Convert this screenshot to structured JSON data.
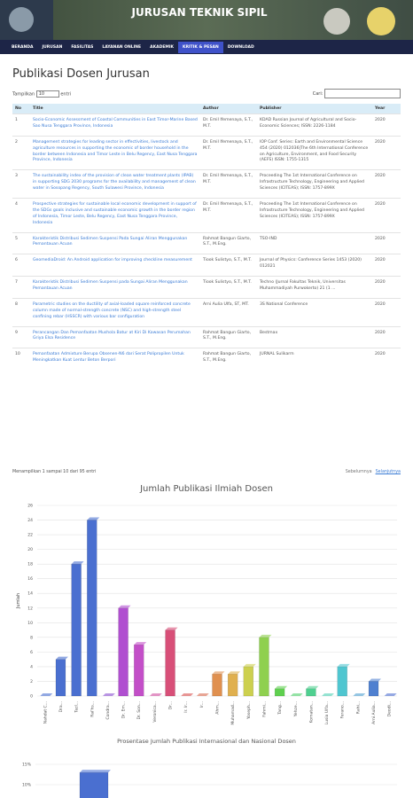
{
  "header": {
    "title": "JURUSAN TEKNIK SIPIL"
  },
  "nav": [
    "BERANDA",
    "JURUSAN",
    "FASILITAS",
    "LAYANAN ONLINE",
    "AKADEMIK",
    "KRITIK & PESAN",
    "DOWNLOAD"
  ],
  "page_title": "Publikasi Dosen Jurusan",
  "length_control": {
    "before": "Tampilkan",
    "value": "10",
    "after": "entri"
  },
  "search_label": "Cari:",
  "table": {
    "columns": [
      "No",
      "Title",
      "Author",
      "Publisher",
      "Year"
    ],
    "rows": [
      [
        1,
        "Socio-Economic Assessment of Coastal Communities in East Timor-Marine Based Sao Nusa Tenggara Province, Indonesia",
        "Dr. Emil Ifemenaya, S.T., M.T.",
        "KDAD Russian Journal of Agricultural and Socio-Economic Sciences; ISSN: 2226-1184",
        2020
      ],
      [
        2,
        "Management strategies for leading sector in effectivities, livestock and agriculture resources in supporting the economic of border household in the border between Indonesia and Timor Leste in Belu Regency, East Nusa Tenggara Province, Indonesia",
        "Dr. Emil Ifemenaya, S.T., M.T.",
        "IOP Conf. Series: Earth and Environmental Science 454 (2020) 012036|The 6th International Conference on Agriculture, Environment, and Food Security (AEFS) ISSN: 1755-1315",
        2020
      ],
      [
        3,
        "The sustainability index of the provision of clean water treatment plants (IPAB) in supporting SDG 2030 programs for the availability and management of clean water in Sosopang Regency, South Sulawesi Province, Indonesia",
        "Dr. Emil Ifemenaya, S.T., M.T.",
        "Proceeding The 1st International Conference on Infrastructure Technology, Engineering and Applied Sciences (ICITEAS); ISSN: 1757-899X",
        2020
      ],
      [
        4,
        "Prospective strategies for sustainable local economic development in support of the SDGs goals inclusive and sustainable economic growth in the border region of Indonesia, Timor Leste, Belu Regency, East Nusa Tenggara Province, Indonesia",
        "Dr. Emil Ifemenaya, S.T., M.T.",
        "Proceeding The 1st International Conference on Infrastructure Technology, Engineering and Applied Sciences (ICITEAS); ISSN: 1757-899X",
        2020
      ],
      [
        5,
        "Karakteristik Distribusi Sedimen Suspensi Pada Sungai Aliran Menggunakan Pemantauan Acuan",
        "Rahmat Bangun Giarto, S.T., M.Eng.",
        "TSO-IND",
        2020
      ],
      [
        6,
        "GeomediaDroid: An Android application for improving checkline measurement",
        "Tiook Sulistyo, S.T., M.T.",
        "Journal of Physics: Conference Series 1453 (2020) 012021",
        2020
      ],
      [
        7,
        "Karakteristik Distribusi Sedimen Suspensi pada Sungai Aliran Menggunakan Pemantauan Acuan",
        "Tiook Sulistyo, S.T., M.T.",
        "Techno (Jurnal Fakultas Teknik, Universitas Muhammadiyah Purwokerto) 21 (1 ...",
        2020
      ],
      [
        8,
        "Parametric studies on the ductility of axial-loaded square reinforced concrete column made of normal-strength concrete (NSC) and high-strength steel confining rebar (HSSCR) with various bar configuration",
        "Arni Aulia Ulfa, ST, MT.",
        "3S National Conference",
        2020
      ],
      [
        9,
        "Perancangan Dan Pemanfaatan Mushola Batur at Kiri Di Kawasan Perumahan Griya Elsa Residence",
        "Rahmat Bangun Giarto, S.T., M.Eng.",
        "Bestmax",
        2020
      ],
      [
        10,
        "Pemanfaatan Admixture Berupa Obsenen-N6 dari Serat Polipropilen Untuk Meningkatkan Kuat Lentur Beton Berpori",
        "Rahmat Bangun Giarto, S.T., M.Eng.",
        "JURNAL Sulikarm",
        2020
      ]
    ]
  },
  "info": "Menampilkan 1 sampai 10 dari 95 entri",
  "pagination": [
    "Sebelumnya",
    "Selanjutnya"
  ],
  "chart_data": [
    {
      "type": "bar",
      "title": "Jumlah Publikasi Ilmiah Dosen",
      "y_label": "Jumlah",
      "categories": [
        "Nahdat C...",
        "Dra...",
        "Tazl...",
        "Rai'hs...",
        "Condra...",
        "Dr. Em...",
        "Dr. Son...",
        "Veronica...",
        "Dr...",
        "Ir. Ir...",
        "Ir...",
        "Ahm...",
        "Muhamad...",
        "Yoseph...",
        "Fahmi...",
        "Tang...",
        "Yehze...",
        "Kornatan...",
        "Lusia Ulfa...",
        "Ferano...",
        "Rahi...",
        "Arni Aulia...",
        "Deodi..."
      ],
      "values": [
        0,
        5,
        18,
        24,
        0,
        12,
        7,
        0,
        9,
        0,
        0,
        3,
        3,
        4,
        8,
        1,
        0,
        1,
        0,
        4,
        0,
        2,
        0
      ],
      "colors": [
        "#4a6fd0",
        "#4a6fd0",
        "#4a6fd0",
        "#4a6fd0",
        "#8a4fd0",
        "#b04fd0",
        "#c34fc8",
        "#d04fa0",
        "#d84f78",
        "#d8504f",
        "#d86a4f",
        "#e0904f",
        "#e0b04f",
        "#cdd04f",
        "#8fd04f",
        "#5fd04f",
        "#4fd06a",
        "#4fd090",
        "#4fd0b4",
        "#4fc6d0",
        "#4fa0d0",
        "#4f80d0",
        "#4f6fd0"
      ],
      "ylim": [
        0,
        26
      ],
      "yticks": [
        0,
        2,
        4,
        6,
        8,
        10,
        12,
        14,
        16,
        18,
        20,
        22,
        24,
        26
      ],
      "grid": true
    },
    {
      "type": "bar",
      "title": "Prosentase Jumlah Publikasi Internasional dan Nasional Dosen",
      "categories": [
        null
      ],
      "values": [
        13
      ],
      "color": "#4a6fd0",
      "ylim": [
        0,
        20
      ],
      "yticks": [
        {
          "value": 15,
          "label": "15%"
        },
        {
          "value": 10,
          "label": "10%"
        }
      ],
      "grid": true
    }
  ]
}
